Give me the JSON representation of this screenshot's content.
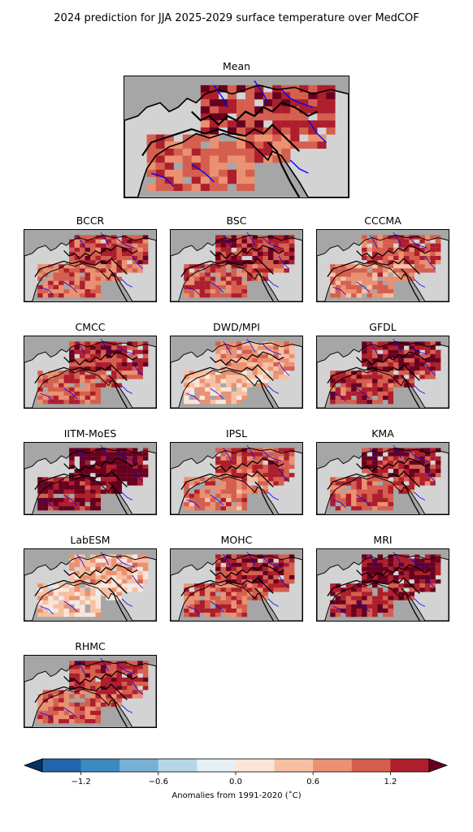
{
  "title": "2024 prediction for JJA 2025-2029 surface temperature over MedCOF",
  "panels": [
    {
      "name": "Mean",
      "level": 0.62
    },
    {
      "name": "BCCR",
      "level": 0.6
    },
    {
      "name": "BSC",
      "level": 0.66
    },
    {
      "name": "CCCMA",
      "level": 0.55
    },
    {
      "name": "CMCC",
      "level": 0.66
    },
    {
      "name": "DWD/MPI",
      "level": 0.35
    },
    {
      "name": "GFDL",
      "level": 0.72
    },
    {
      "name": "IITM-MoES",
      "level": 0.85
    },
    {
      "name": "IPSL",
      "level": 0.58
    },
    {
      "name": "KMA",
      "level": 0.68
    },
    {
      "name": "LabESM",
      "level": 0.3
    },
    {
      "name": "MOHC",
      "level": 0.64
    },
    {
      "name": "MRI",
      "level": 0.78
    },
    {
      "name": "RHMC",
      "level": 0.62
    }
  ],
  "colorbar": {
    "label": "Anomalies from 1991-2020 ($^\\circ$C)",
    "label_display": "Anomalies from 1991-2020 (˚C)",
    "ticks": [
      "−1.2",
      "−0.6",
      "0.0",
      "0.6",
      "1.2"
    ],
    "tick_values": [
      -1.2,
      -0.6,
      0.0,
      0.6,
      1.2
    ],
    "range": [
      -1.5,
      1.5
    ],
    "extend": "both",
    "colors": [
      "#2166ac",
      "#3d8ac2",
      "#77b2d6",
      "#b6d6e8",
      "#e5eff6",
      "#fbe5d9",
      "#f8c0a3",
      "#eb9171",
      "#d55f4f",
      "#ae1e2c"
    ],
    "under_color": "#053061",
    "over_color": "#67001f"
  },
  "map_style": {
    "land_color": "#d3d3d3",
    "sea_color": "#a6a6a6",
    "river_color": "#0000ff",
    "coast_color": "#000000"
  }
}
